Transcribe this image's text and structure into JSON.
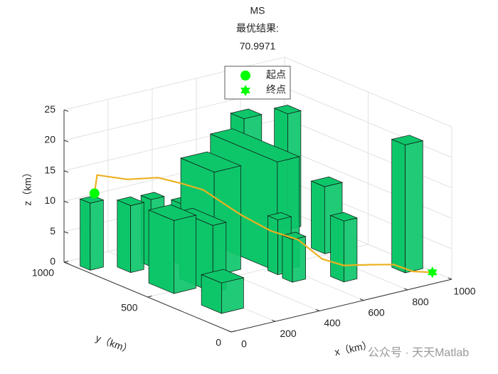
{
  "chart_data": {
    "type": "path3d",
    "title": [
      "MS",
      "最优结果:",
      "70.9971"
    ],
    "xlabel": "x（km）",
    "ylabel": "y（km）",
    "zlabel": "z（km）",
    "xlim": [
      0,
      1000
    ],
    "ylim": [
      0,
      1000
    ],
    "zlim": [
      0,
      25
    ],
    "xticks": [
      0,
      200,
      400,
      600,
      800,
      1000
    ],
    "yticks": [
      0,
      500,
      1000
    ],
    "zticks": [
      0,
      5,
      10,
      15,
      20,
      25
    ],
    "grid": true,
    "legend": "top",
    "obstacle_color": "#0ec66a",
    "obstacles": [
      {
        "x": 50,
        "y": 900,
        "dx": 60,
        "dy": 60,
        "h": 11
      },
      {
        "x": 150,
        "y": 800,
        "dx": 60,
        "dy": 80,
        "h": 11
      },
      {
        "x": 250,
        "y": 800,
        "dx": 60,
        "dy": 60,
        "h": 11
      },
      {
        "x": 350,
        "y": 750,
        "dx": 60,
        "dy": 60,
        "h": 10
      },
      {
        "x": 750,
        "y": 900,
        "dx": 80,
        "dy": 80,
        "h": 19
      },
      {
        "x": 900,
        "y": 850,
        "dx": 60,
        "dy": 80,
        "h": 19
      },
      {
        "x": 400,
        "y": 650,
        "dx": 120,
        "dy": 200,
        "h": 17
      },
      {
        "x": 600,
        "y": 650,
        "dx": 100,
        "dy": 400,
        "h": 18
      },
      {
        "x": 850,
        "y": 550,
        "dx": 80,
        "dy": 80,
        "h": 11
      },
      {
        "x": 250,
        "y": 500,
        "dx": 60,
        "dy": 200,
        "h": 11
      },
      {
        "x": 150,
        "y": 550,
        "dx": 100,
        "dy": 150,
        "h": 12
      },
      {
        "x": 560,
        "y": 450,
        "dx": 60,
        "dy": 60,
        "h": 9
      },
      {
        "x": 550,
        "y": 350,
        "dx": 60,
        "dy": 60,
        "h": 7
      },
      {
        "x": 700,
        "y": 250,
        "dx": 60,
        "dy": 80,
        "h": 10
      },
      {
        "x": 950,
        "y": 200,
        "dx": 80,
        "dy": 80,
        "h": 21
      },
      {
        "x": 150,
        "y": 250,
        "dx": 100,
        "dy": 120,
        "h": 5
      }
    ],
    "path": {
      "color": "#edb120",
      "x": [
        100,
        150,
        250,
        350,
        420,
        480,
        520,
        500,
        560,
        620,
        640,
        700,
        780,
        850,
        900,
        950
      ],
      "y": [
        950,
        1000,
        950,
        900,
        850,
        800,
        700,
        600,
        500,
        420,
        300,
        250,
        200,
        150,
        100,
        50
      ],
      "z": [
        11,
        13,
        12,
        12,
        11,
        10,
        8,
        8,
        6,
        5,
        3,
        2,
        2,
        2,
        1,
        1
      ]
    },
    "start": {
      "name": "起点",
      "color": "#00ff00",
      "x": 100,
      "y": 950,
      "z": 11
    },
    "goal": {
      "name": "终点",
      "color": "#00ff00",
      "x": 950,
      "y": 50,
      "z": 1
    }
  },
  "watermark": "公众号 · 天天Matlab"
}
